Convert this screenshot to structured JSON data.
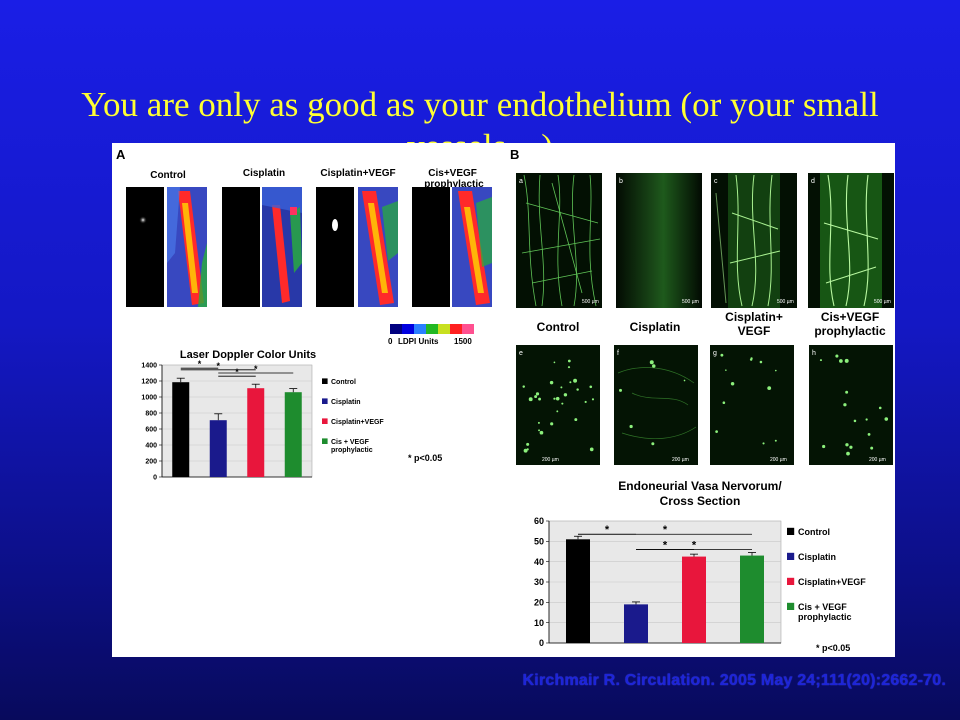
{
  "slide": {
    "title": "You are only as good as your endothelium (or your small vessels…)",
    "citation": "Kirchmair R. Circulation. 2005 May 24;111(20):2662-70."
  },
  "panelA": {
    "letter": "A",
    "groups": [
      "Control",
      "Cisplatin",
      "Cisplatin+VEGF",
      "Cis+VEGF prophylactic"
    ],
    "scale": {
      "min": "0",
      "label": "LDPI Units",
      "max": "1500",
      "colors": [
        "#000080",
        "#0000e0",
        "#2a7fff",
        "#22b822",
        "#c8e020",
        "#ff2020",
        "#ff5090"
      ]
    }
  },
  "panelB": {
    "letter": "B",
    "top_letters": [
      "a",
      "b",
      "c",
      "d"
    ],
    "bottom_letters": [
      "e",
      "f",
      "g",
      "h"
    ],
    "groups": [
      "Control",
      "Cisplatin",
      "Cisplatin+ VEGF",
      "Cis+VEGF prophylactic"
    ],
    "scale_top": "500 µm",
    "scale_bottom": "200 µm"
  },
  "chart_data": [
    {
      "type": "bar",
      "title": "Laser Doppler Color Units",
      "categories": [
        "Control",
        "Cisplatin",
        "Cisplatin+VEGF",
        "Cis + VEGF prophylactic"
      ],
      "values": [
        1185,
        710,
        1110,
        1060
      ],
      "errors": [
        50,
        80,
        50,
        45
      ],
      "colors": [
        "#000000",
        "#1a1a8c",
        "#e8163c",
        "#1e8c2e"
      ],
      "ylim": [
        0,
        1400
      ],
      "yticks": [
        "0",
        "200",
        "400",
        "600",
        "800",
        "1000",
        "1200",
        "1400"
      ],
      "annotation": "p<0.05",
      "legend_position": "right"
    },
    {
      "type": "bar",
      "title": "Endoneurial Vasa Nervorum/ Cross Section",
      "categories": [
        "Control",
        "Cisplatin",
        "Cisplatin+VEGF",
        "Cis + VEGF prophylactic"
      ],
      "values": [
        51,
        19,
        42.5,
        43
      ],
      "errors": [
        1.5,
        1.2,
        1.2,
        1.5
      ],
      "colors": [
        "#000000",
        "#1a1a8c",
        "#e8163c",
        "#1e8c2e"
      ],
      "ylim": [
        0,
        60
      ],
      "yticks": [
        "0",
        "10",
        "20",
        "30",
        "40",
        "50",
        "60"
      ],
      "annotation": "p<0.05",
      "legend_position": "right"
    }
  ]
}
